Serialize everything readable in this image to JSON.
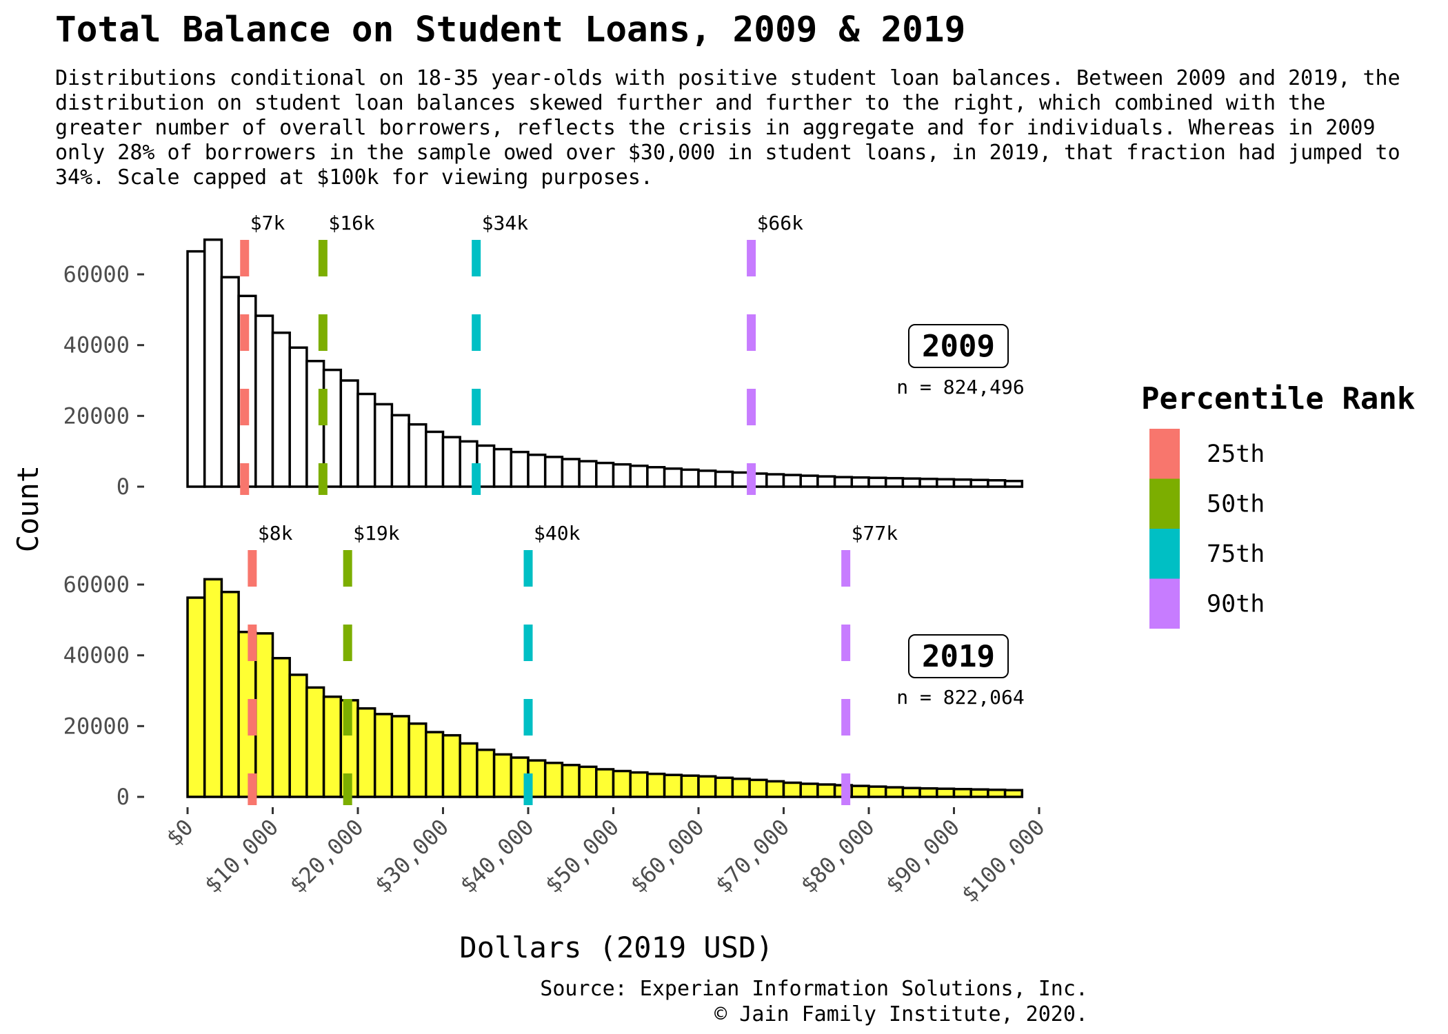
{
  "title": "Total Balance on Student Loans, 2009 & 2019",
  "subtitle": "Distributions conditional on 18-35 year-olds with positive student loan balances. Between 2009 and 2019, the distribution on student loan balances skewed further and further to the right, which combined with the greater number of overall borrowers, reflects the crisis in aggregate and for individuals. Whereas in 2009 only 28% of borrowers in the sample owed over $30,000 in student loans, in 2019, that fraction had jumped to 34%. Scale capped at $100k for viewing purposes.",
  "caption": [
    "Source: Experian Information Solutions, Inc.",
    "© Jain Family Institute, 2020."
  ],
  "chart_data": {
    "type": "bar",
    "xlabel": "Dollars (2019 USD)",
    "ylabel": "Count",
    "xlim": [
      0,
      100000
    ],
    "ylim": [
      0,
      70000
    ],
    "bin_width": 2000,
    "x_ticks": [
      0,
      10000,
      20000,
      30000,
      40000,
      50000,
      60000,
      70000,
      80000,
      90000,
      100000
    ],
    "x_tick_labels": [
      "$0",
      "$10,000",
      "$20,000",
      "$30,000",
      "$40,000",
      "$50,000",
      "$60,000",
      "$70,000",
      "$80,000",
      "$90,000",
      "$100,000"
    ],
    "y_ticks": [
      0,
      20000,
      40000,
      60000
    ],
    "y_tick_labels": [
      "0",
      "20000",
      "40000",
      "60000"
    ],
    "grid": false,
    "legend": {
      "title": "Percentile Rank",
      "placement": "right",
      "entries": [
        {
          "label": "25th",
          "color": "#F8766D"
        },
        {
          "label": "50th",
          "color": "#7CAE00"
        },
        {
          "label": "75th",
          "color": "#00BFC4"
        },
        {
          "label": "90th",
          "color": "#C77CFF"
        }
      ]
    },
    "panels": [
      {
        "label": "2009",
        "n_label": "n = 824,496",
        "fill": "#ffffff",
        "bin_starts": [
          1000,
          3000,
          5000,
          7000,
          9000,
          11000,
          13000,
          15000,
          17000,
          19000,
          21000,
          23000,
          25000,
          27000,
          29000,
          31000,
          33000,
          35000,
          37000,
          39000,
          41000,
          43000,
          45000,
          47000,
          49000,
          51000,
          53000,
          55000,
          57000,
          59000,
          61000,
          63000,
          65000,
          67000,
          69000,
          71000,
          73000,
          75000,
          77000,
          79000,
          81000,
          83000,
          85000,
          87000,
          89000,
          91000,
          93000,
          95000,
          97000
        ],
        "counts": [
          66500,
          69800,
          59200,
          53900,
          48300,
          43500,
          39300,
          35500,
          33000,
          30000,
          26200,
          23300,
          20200,
          17600,
          15500,
          14000,
          12800,
          11600,
          10600,
          9800,
          9000,
          8400,
          7800,
          7200,
          6700,
          6300,
          5900,
          5500,
          5100,
          4800,
          4500,
          4200,
          4000,
          3700,
          3500,
          3300,
          3100,
          2900,
          2700,
          2600,
          2500,
          2400,
          2300,
          2200,
          2100,
          2000,
          1900,
          1800,
          1600
        ],
        "percentiles": [
          {
            "rank": "25th",
            "value": 6700,
            "label": "$7k"
          },
          {
            "rank": "50th",
            "value": 15900,
            "label": "$16k"
          },
          {
            "rank": "75th",
            "value": 33900,
            "label": "$34k"
          },
          {
            "rank": "90th",
            "value": 66200,
            "label": "$66k"
          }
        ]
      },
      {
        "label": "2019",
        "n_label": "n = 822,064",
        "fill": "#FFFF33",
        "bin_starts": [
          1000,
          3000,
          5000,
          7000,
          9000,
          11000,
          13000,
          15000,
          17000,
          19000,
          21000,
          23000,
          25000,
          27000,
          29000,
          31000,
          33000,
          35000,
          37000,
          39000,
          41000,
          43000,
          45000,
          47000,
          49000,
          51000,
          53000,
          55000,
          57000,
          59000,
          61000,
          63000,
          65000,
          67000,
          69000,
          71000,
          73000,
          75000,
          77000,
          79000,
          81000,
          83000,
          85000,
          87000,
          89000,
          91000,
          93000,
          95000,
          97000
        ],
        "counts": [
          56300,
          61500,
          57900,
          46600,
          46200,
          39200,
          34500,
          30900,
          28300,
          27300,
          25000,
          23400,
          22800,
          20700,
          18300,
          17400,
          15100,
          13300,
          12000,
          11100,
          10300,
          9600,
          9000,
          8500,
          7800,
          7300,
          6900,
          6500,
          6200,
          6000,
          5800,
          5400,
          5100,
          4800,
          4400,
          4000,
          3700,
          3500,
          3300,
          3100,
          2900,
          2700,
          2500,
          2400,
          2300,
          2200,
          2100,
          2000,
          1900
        ],
        "percentiles": [
          {
            "rank": "25th",
            "value": 7600,
            "label": "$8k"
          },
          {
            "rank": "50th",
            "value": 18800,
            "label": "$19k"
          },
          {
            "rank": "75th",
            "value": 40000,
            "label": "$40k"
          },
          {
            "rank": "90th",
            "value": 77300,
            "label": "$77k"
          }
        ]
      }
    ]
  }
}
